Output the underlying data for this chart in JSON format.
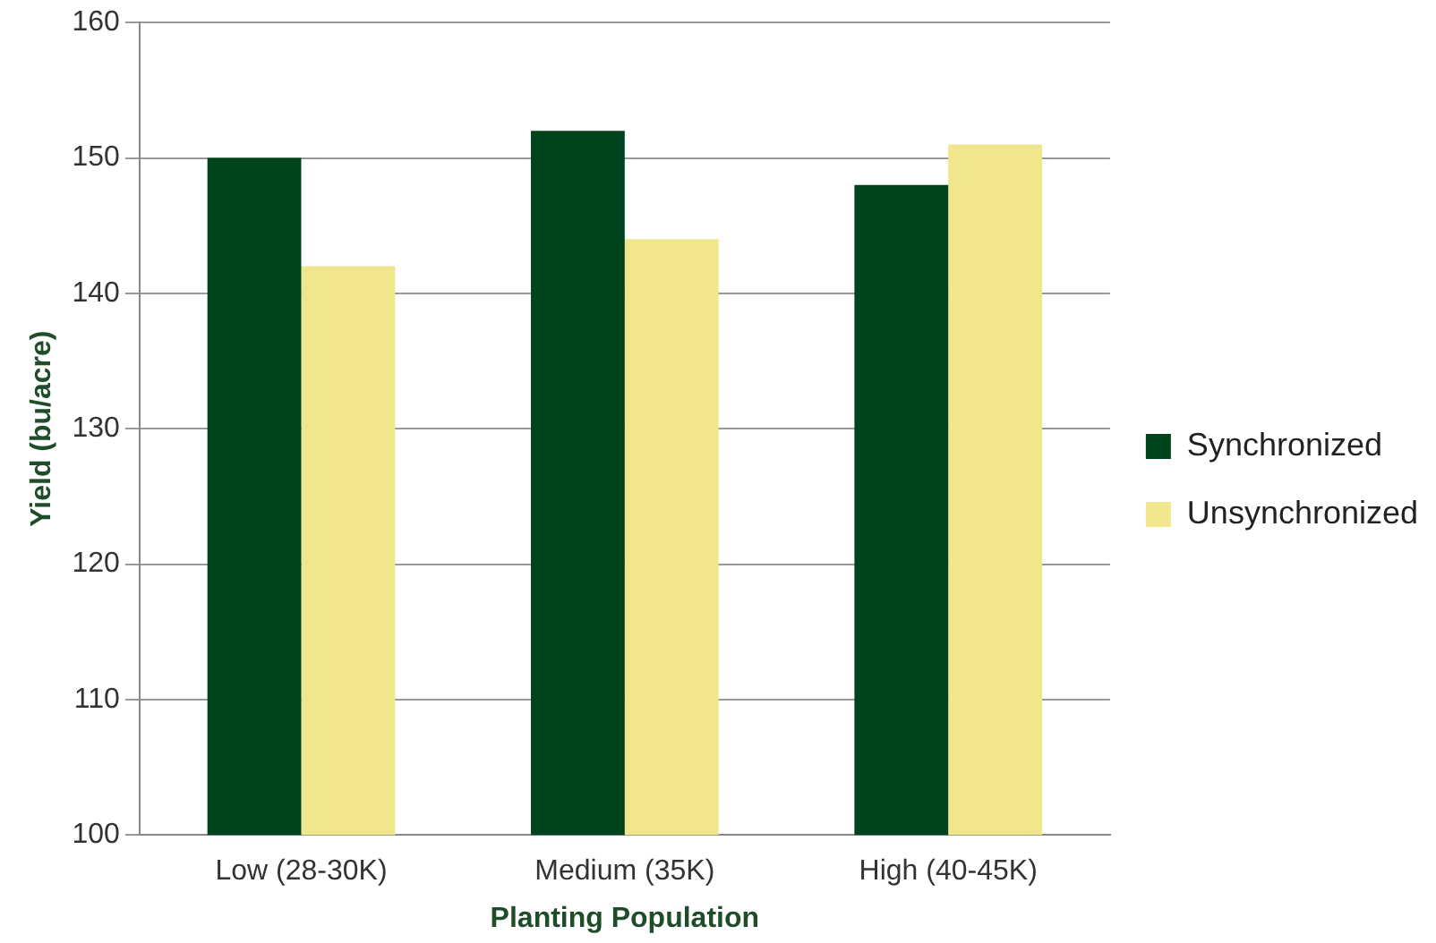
{
  "chart_data": {
    "type": "bar",
    "xlabel": "Planting Population",
    "ylabel": "Yield (bu/acre)",
    "categories": [
      "Low (28-30K)",
      "Medium (35K)",
      "High (40-45K)"
    ],
    "series": [
      {
        "name": "Synchronized",
        "color": "#00441e",
        "values": [
          150,
          152,
          148
        ]
      },
      {
        "name": "Unsynchronized",
        "color": "#f0e68c",
        "values": [
          142,
          144,
          151
        ]
      }
    ],
    "ylim": [
      100,
      160
    ],
    "yticks": [
      100,
      110,
      120,
      130,
      140,
      150,
      160
    ],
    "grid": "y",
    "legend": "right"
  }
}
